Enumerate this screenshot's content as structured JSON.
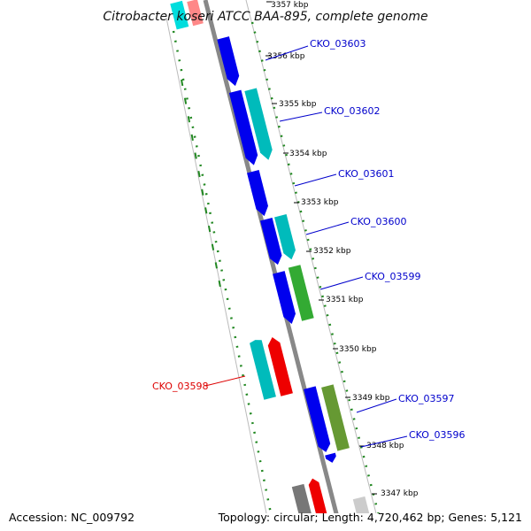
{
  "title": "Citrobacter koseri ATCC BAA-895, complete genome",
  "footer": {
    "accession_label": "Accession:",
    "accession": "NC_009792",
    "stats": "Topology: circular; Length: 4,720,462 bp; Genes: 5,121"
  },
  "ticks": [
    "3357 kbp",
    "3356 kbp",
    "3355 kbp",
    "3354 kbp",
    "3353 kbp",
    "3352 kbp",
    "3351 kbp",
    "3350 kbp",
    "3349 kbp",
    "3348 kbp",
    "3347 kbp"
  ],
  "gene_labels": [
    {
      "text": "CKO_03603",
      "color": "#0000cc"
    },
    {
      "text": "CKO_03602",
      "color": "#0000cc"
    },
    {
      "text": "CKO_03601",
      "color": "#0000cc"
    },
    {
      "text": "CKO_03600",
      "color": "#0000cc"
    },
    {
      "text": "CKO_03599",
      "color": "#0000cc"
    },
    {
      "text": "CKO_03598",
      "color": "#dd0000"
    },
    {
      "text": "CKO_03597",
      "color": "#0000cc"
    },
    {
      "text": "CKO_03596",
      "color": "#0000cc"
    }
  ],
  "colors": {
    "cds_blue": "#0000ee",
    "cds_cyan": "#00bbbb",
    "cds_red": "#ee0000",
    "cds_green": "#33aa33",
    "cds_olive": "#669933",
    "cds_gray": "#777777",
    "backbone": "#888888",
    "gc_dash": "#228822"
  }
}
